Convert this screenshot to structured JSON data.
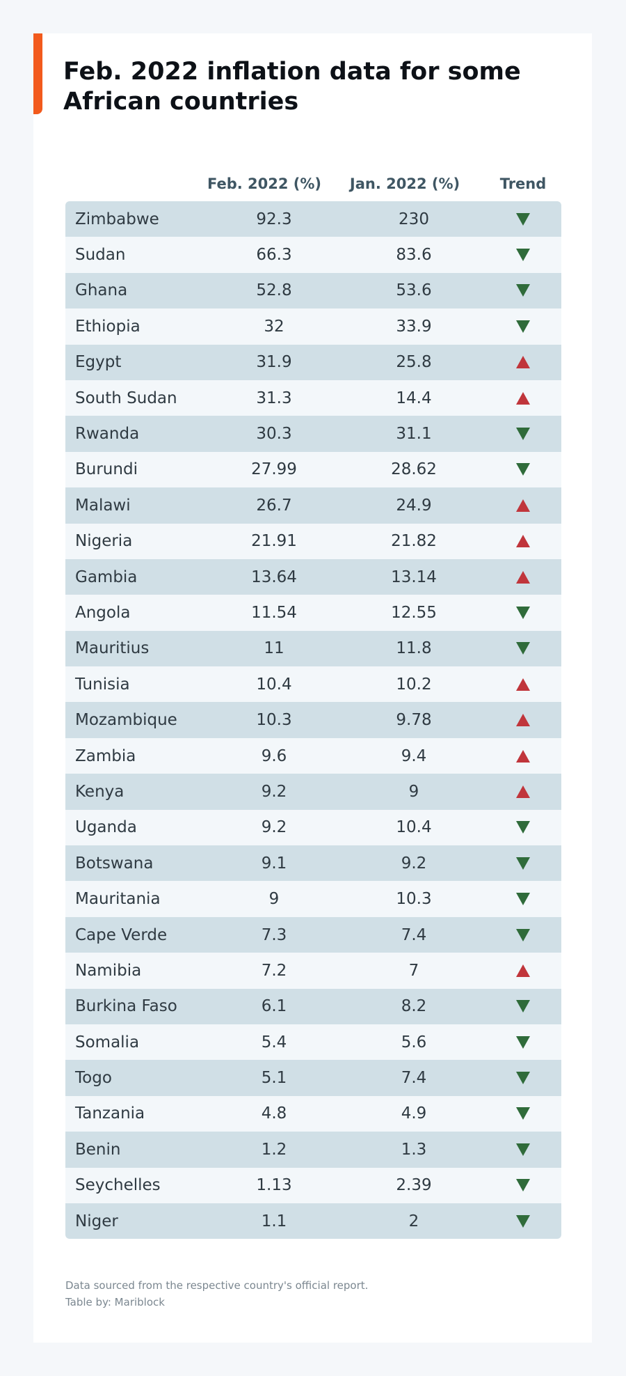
{
  "title": "Feb. 2022 inflation data for some African countries",
  "colors": {
    "accent": "#f25a1c",
    "row_dark": "#d0dfe6",
    "row_light": "#f3f7fa",
    "trend_down": "#2f6b3a",
    "trend_up": "#c0353b"
  },
  "columns": {
    "country": "",
    "feb": "Feb. 2022 (%)",
    "jan": "Jan. 2022 (%)",
    "trend": "Trend"
  },
  "footnotes": {
    "source": "Data sourced from the respective country's official report.",
    "credit": "Table by: Mariblock"
  },
  "chart_data": {
    "type": "table",
    "title": "Feb. 2022 inflation data for some African countries",
    "columns": [
      "",
      "Feb. 2022 (%)",
      "Jan. 2022 (%)",
      "Trend"
    ],
    "rows": [
      {
        "country": "Zimbabwe",
        "feb": "92.3",
        "jan": "230",
        "trend": "down"
      },
      {
        "country": "Sudan",
        "feb": "66.3",
        "jan": "83.6",
        "trend": "down"
      },
      {
        "country": "Ghana",
        "feb": "52.8",
        "jan": "53.6",
        "trend": "down"
      },
      {
        "country": "Ethiopia",
        "feb": "32",
        "jan": "33.9",
        "trend": "down"
      },
      {
        "country": "Egypt",
        "feb": "31.9",
        "jan": "25.8",
        "trend": "up"
      },
      {
        "country": "South Sudan",
        "feb": "31.3",
        "jan": "14.4",
        "trend": "up"
      },
      {
        "country": "Rwanda",
        "feb": "30.3",
        "jan": "31.1",
        "trend": "down"
      },
      {
        "country": "Burundi",
        "feb": "27.99",
        "jan": "28.62",
        "trend": "down"
      },
      {
        "country": "Malawi",
        "feb": "26.7",
        "jan": "24.9",
        "trend": "up"
      },
      {
        "country": "Nigeria",
        "feb": "21.91",
        "jan": "21.82",
        "trend": "up"
      },
      {
        "country": "Gambia",
        "feb": "13.64",
        "jan": "13.14",
        "trend": "up"
      },
      {
        "country": "Angola",
        "feb": "11.54",
        "jan": "12.55",
        "trend": "down"
      },
      {
        "country": "Mauritius",
        "feb": "11",
        "jan": "11.8",
        "trend": "down"
      },
      {
        "country": "Tunisia",
        "feb": "10.4",
        "jan": "10.2",
        "trend": "up"
      },
      {
        "country": "Mozambique",
        "feb": "10.3",
        "jan": "9.78",
        "trend": "up"
      },
      {
        "country": "Zambia",
        "feb": "9.6",
        "jan": "9.4",
        "trend": "up"
      },
      {
        "country": "Kenya",
        "feb": "9.2",
        "jan": "9",
        "trend": "up"
      },
      {
        "country": "Uganda",
        "feb": "9.2",
        "jan": "10.4",
        "trend": "down"
      },
      {
        "country": "Botswana",
        "feb": "9.1",
        "jan": "9.2",
        "trend": "down"
      },
      {
        "country": "Mauritania",
        "feb": "9",
        "jan": "10.3",
        "trend": "down"
      },
      {
        "country": "Cape Verde",
        "feb": "7.3",
        "jan": "7.4",
        "trend": "down"
      },
      {
        "country": "Namibia",
        "feb": "7.2",
        "jan": "7",
        "trend": "up"
      },
      {
        "country": "Burkina Faso",
        "feb": "6.1",
        "jan": "8.2",
        "trend": "down"
      },
      {
        "country": "Somalia",
        "feb": "5.4",
        "jan": "5.6",
        "trend": "down"
      },
      {
        "country": "Togo",
        "feb": "5.1",
        "jan": "7.4",
        "trend": "down"
      },
      {
        "country": "Tanzania",
        "feb": "4.8",
        "jan": "4.9",
        "trend": "down"
      },
      {
        "country": "Benin",
        "feb": "1.2",
        "jan": "1.3",
        "trend": "down"
      },
      {
        "country": "Seychelles",
        "feb": "1.13",
        "jan": "2.39",
        "trend": "down"
      },
      {
        "country": "Niger",
        "feb": "1.1",
        "jan": "2",
        "trend": "down"
      }
    ]
  }
}
